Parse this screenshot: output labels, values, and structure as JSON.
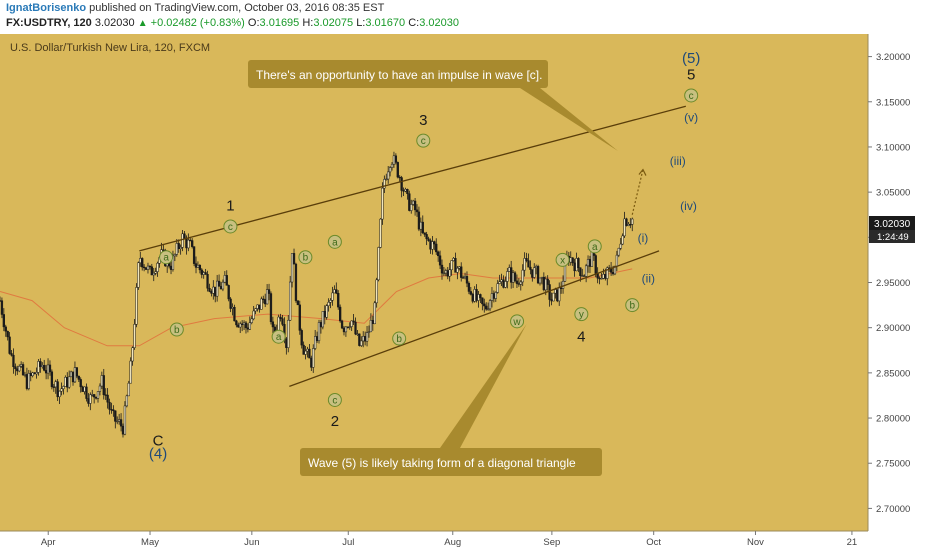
{
  "header": {
    "author": "IgnatBorisenko",
    "published": " published on TradingView.com, October 03, 2016 08:35 EST",
    "symbol": "FX:USDTRY, 120",
    "last": "3.02030",
    "change_arrow": "▲",
    "change": "+0.02482 (+0.83%)",
    "o_label": "O:",
    "o": "3.01695",
    "h_label": "H:",
    "h": "3.02075",
    "l_label": "L:",
    "l": "3.01670",
    "c_label": "C:",
    "c": "3.02030"
  },
  "colors": {
    "background": "#d9b85a",
    "candle": "#1a1a1a",
    "trendline": "#5a3e0a",
    "ma": "#e07a40",
    "circle_fill": "#c8c080",
    "circle_stroke": "#6b8a2a",
    "circle_text": "#3f6a1a",
    "wave_blue": "#1f4a7a",
    "callout": "#a88a2e",
    "callout_text": "#ffffff",
    "price_tag": "#1a1a1a"
  },
  "chart_data": {
    "type": "candlestick",
    "title": "U.S. Dollar/Turkish New Lira, 120, FXCM",
    "xlabel": "",
    "ylabel": "",
    "ylim": [
      2.675,
      3.225
    ],
    "y_ticks": [
      "3.20000",
      "3.15000",
      "3.10000",
      "3.05000",
      "3.00000",
      "2.95000",
      "2.90000",
      "2.85000",
      "2.80000",
      "2.75000",
      "2.70000"
    ],
    "x_ticks": [
      "Apr",
      "May",
      "Jun",
      "Jul",
      "Aug",
      "Sep",
      "Oct",
      "Nov",
      "21"
    ],
    "current_price": "3.02030",
    "countdown": "1:24:49",
    "price_path": [
      [
        0.0,
        2.93
      ],
      [
        0.02,
        2.87
      ],
      [
        0.05,
        2.84
      ],
      [
        0.08,
        2.86
      ],
      [
        0.11,
        2.83
      ],
      [
        0.14,
        2.85
      ],
      [
        0.17,
        2.82
      ],
      [
        0.19,
        2.84
      ],
      [
        0.21,
        2.8
      ],
      [
        0.23,
        2.79
      ],
      [
        0.245,
        2.86
      ],
      [
        0.26,
        2.98
      ],
      [
        0.28,
        2.96
      ],
      [
        0.3,
        2.98
      ],
      [
        0.32,
        2.97
      ],
      [
        0.34,
        3.0
      ],
      [
        0.355,
        2.99
      ],
      [
        0.365,
        2.97
      ],
      [
        0.38,
        2.96
      ],
      [
        0.4,
        2.94
      ],
      [
        0.42,
        2.95
      ],
      [
        0.44,
        2.91
      ],
      [
        0.46,
        2.9
      ],
      [
        0.48,
        2.92
      ],
      [
        0.5,
        2.94
      ],
      [
        0.51,
        2.89
      ],
      [
        0.525,
        2.92
      ],
      [
        0.535,
        2.88
      ],
      [
        0.545,
        2.99
      ],
      [
        0.555,
        2.92
      ],
      [
        0.565,
        2.88
      ],
      [
        0.58,
        2.86
      ],
      [
        0.595,
        2.9
      ],
      [
        0.61,
        2.92
      ],
      [
        0.625,
        2.94
      ],
      [
        0.64,
        2.9
      ],
      [
        0.655,
        2.91
      ],
      [
        0.67,
        2.88
      ],
      [
        0.685,
        2.89
      ],
      [
        0.7,
        2.92
      ],
      [
        0.715,
        3.06
      ],
      [
        0.73,
        3.09
      ],
      [
        0.745,
        3.07
      ],
      [
        0.76,
        3.04
      ],
      [
        0.775,
        3.03
      ],
      [
        0.79,
        3.0
      ],
      [
        0.81,
        2.99
      ],
      [
        0.83,
        2.96
      ],
      [
        0.85,
        2.97
      ],
      [
        0.87,
        2.95
      ],
      [
        0.89,
        2.93
      ],
      [
        0.905,
        2.92
      ],
      [
        0.92,
        2.94
      ],
      [
        0.935,
        2.95
      ],
      [
        0.95,
        2.96
      ],
      [
        0.965,
        2.95
      ],
      [
        0.98,
        2.97
      ],
      [
        1.0,
        2.96
      ],
      [
        1.015,
        2.95
      ],
      [
        1.03,
        2.93
      ],
      [
        1.045,
        2.94
      ],
      [
        1.06,
        2.98
      ],
      [
        1.075,
        2.97
      ],
      [
        1.09,
        2.96
      ],
      [
        1.105,
        2.98
      ],
      [
        1.12,
        2.95
      ],
      [
        1.135,
        2.96
      ],
      [
        1.15,
        2.97
      ],
      [
        1.165,
        3.02
      ],
      [
        1.18,
        3.02
      ]
    ],
    "ma_path": [
      [
        0.0,
        2.94
      ],
      [
        0.06,
        2.93
      ],
      [
        0.12,
        2.9
      ],
      [
        0.2,
        2.88
      ],
      [
        0.26,
        2.88
      ],
      [
        0.32,
        2.9
      ],
      [
        0.4,
        2.91
      ],
      [
        0.5,
        2.915
      ],
      [
        0.6,
        2.91
      ],
      [
        0.68,
        2.905
      ],
      [
        0.74,
        2.94
      ],
      [
        0.8,
        2.955
      ],
      [
        0.86,
        2.96
      ],
      [
        0.92,
        2.955
      ],
      [
        0.98,
        2.955
      ],
      [
        1.04,
        2.955
      ],
      [
        1.1,
        2.955
      ],
      [
        1.18,
        2.965
      ]
    ],
    "trendlines": [
      {
        "name": "upper",
        "from": [
          0.26,
          2.985
        ],
        "to": [
          1.28,
          3.145
        ]
      },
      {
        "name": "lower",
        "from": [
          0.54,
          2.835
        ],
        "to": [
          1.23,
          2.985
        ]
      }
    ],
    "projection": {
      "from": [
        1.18,
        3.025
      ],
      "to": [
        1.2,
        3.075
      ]
    },
    "x_domain": [
      0.0,
      1.62
    ],
    "x_tick_positions": [
      0.09,
      0.28,
      0.47,
      0.65,
      0.845,
      1.03,
      1.22,
      1.41,
      1.59
    ],
    "wave_labels": [
      {
        "text": "a",
        "style": "circle",
        "x": 0.31,
        "y": 2.978
      },
      {
        "text": "b",
        "style": "circle",
        "x": 0.33,
        "y": 2.898
      },
      {
        "text": "c",
        "style": "circle",
        "x": 0.43,
        "y": 3.012
      },
      {
        "text": "1",
        "style": "black",
        "x": 0.43,
        "y": 3.035
      },
      {
        "text": "a",
        "style": "circle",
        "x": 0.52,
        "y": 2.89
      },
      {
        "text": "b",
        "style": "circle",
        "x": 0.57,
        "y": 2.978
      },
      {
        "text": "a",
        "style": "circle",
        "x": 0.625,
        "y": 2.995
      },
      {
        "text": "b",
        "style": "circle",
        "x": 0.745,
        "y": 2.888
      },
      {
        "text": "c",
        "style": "circle",
        "x": 0.625,
        "y": 2.82
      },
      {
        "text": "2",
        "style": "black",
        "x": 0.625,
        "y": 2.797
      },
      {
        "text": "c",
        "style": "circle",
        "x": 0.79,
        "y": 3.107
      },
      {
        "text": "3",
        "style": "black",
        "x": 0.79,
        "y": 3.13
      },
      {
        "text": "w",
        "style": "circle",
        "x": 0.965,
        "y": 2.907
      },
      {
        "text": "x",
        "style": "circle",
        "x": 1.05,
        "y": 2.975
      },
      {
        "text": "a",
        "style": "circle",
        "x": 1.11,
        "y": 2.99
      },
      {
        "text": "y",
        "style": "circle",
        "x": 1.085,
        "y": 2.915
      },
      {
        "text": "4",
        "style": "black",
        "x": 1.085,
        "y": 2.89
      },
      {
        "text": "b",
        "style": "circle",
        "x": 1.18,
        "y": 2.925
      },
      {
        "text": "C",
        "style": "black",
        "x": 0.295,
        "y": 2.775
      },
      {
        "text": "(4)",
        "style": "blue",
        "x": 0.295,
        "y": 2.76
      },
      {
        "text": "(i)",
        "style": "blue",
        "x": 1.2,
        "y": 3.0
      },
      {
        "text": "(ii)",
        "style": "blue",
        "x": 1.21,
        "y": 2.955
      },
      {
        "text": "(iii)",
        "style": "blue",
        "x": 1.265,
        "y": 3.085
      },
      {
        "text": "(iv)",
        "style": "blue",
        "x": 1.285,
        "y": 3.035
      },
      {
        "text": "(v)",
        "style": "blue",
        "x": 1.29,
        "y": 3.133
      },
      {
        "text": "c",
        "style": "circle",
        "x": 1.29,
        "y": 3.157
      },
      {
        "text": "5",
        "style": "black",
        "x": 1.29,
        "y": 3.18
      },
      {
        "text": "(5)",
        "style": "blue",
        "x": 1.29,
        "y": 3.198
      }
    ],
    "annotations": [
      {
        "text": "There's an opportunity to have an impulse in wave [c].",
        "pointer_to": [
          1.2,
          3.08
        ]
      },
      {
        "text": "Wave (5) is likely taking form of a diagonal triangle",
        "pointer_to": [
          1.035,
          2.915
        ]
      }
    ]
  }
}
